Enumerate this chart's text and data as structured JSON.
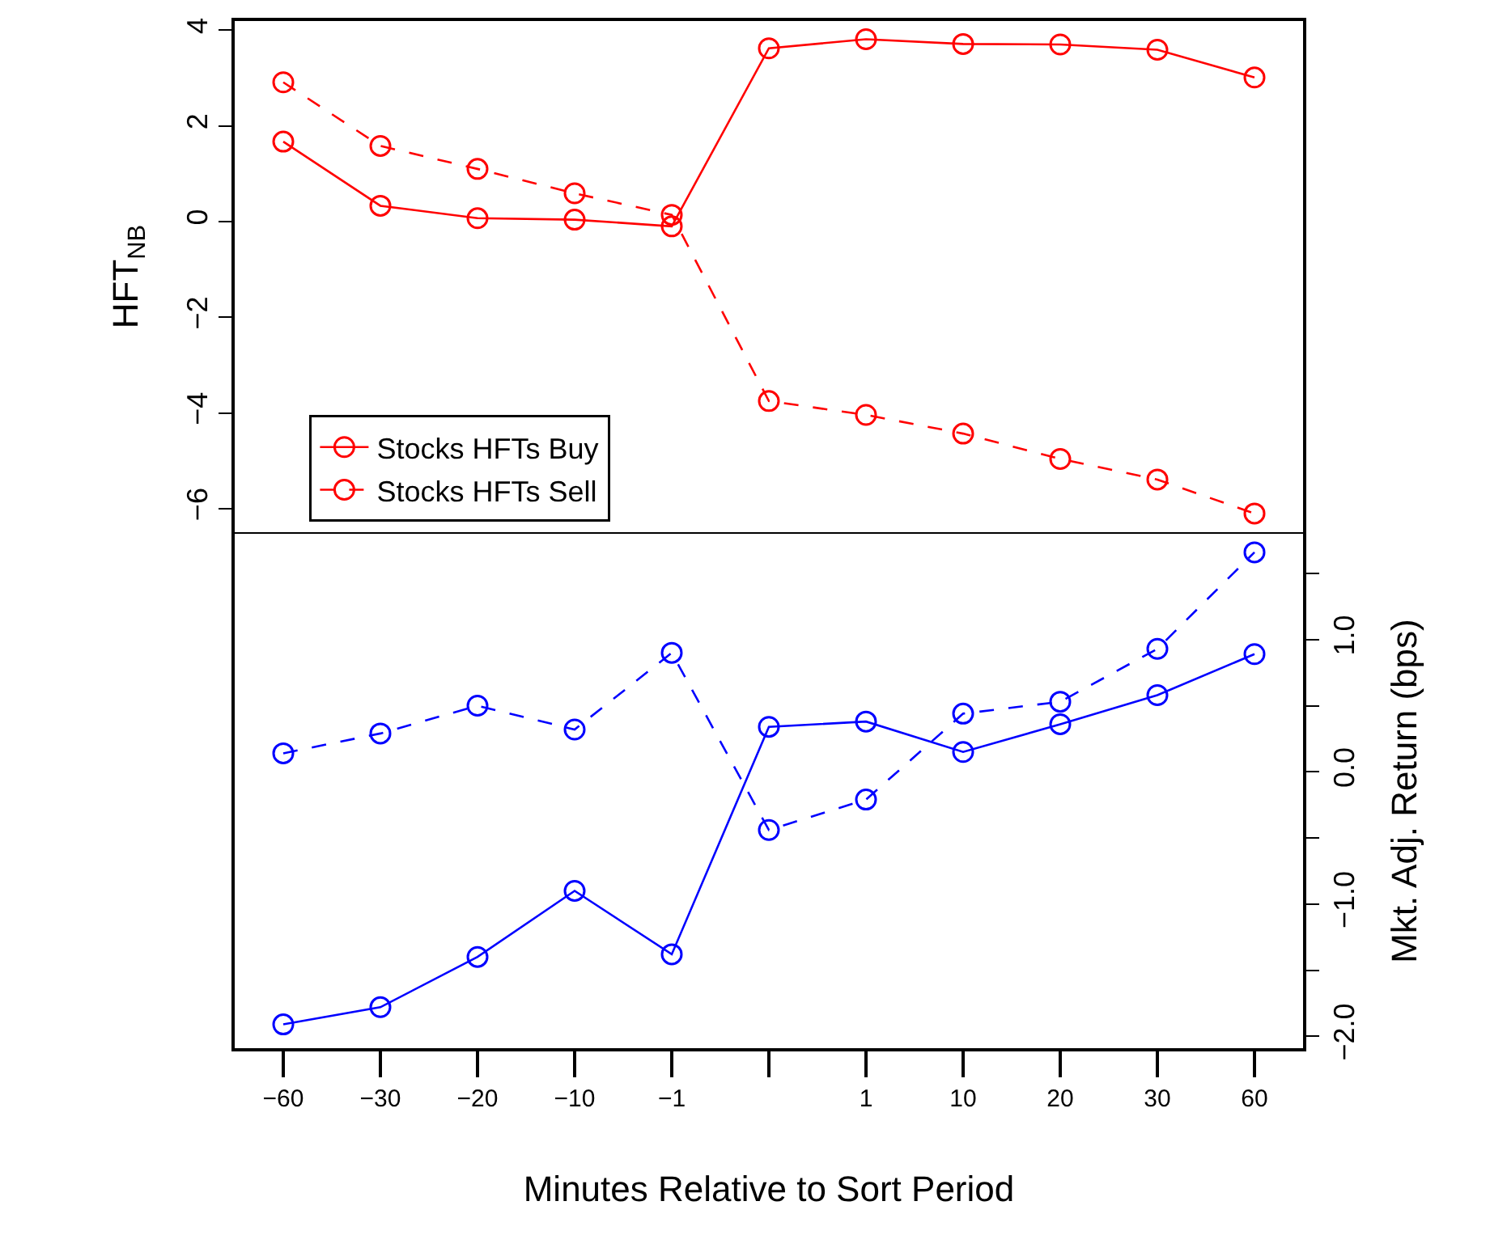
{
  "chart_data": [
    {
      "type": "line",
      "ylabel": "HFT$_{NB}$",
      "categories": [
        "−60",
        "−30",
        "−20",
        "−10",
        "−1",
        null,
        "1",
        "10",
        "20",
        "30",
        "60"
      ],
      "series": [
        {
          "name": "Stocks HFTs Buy",
          "color": "#ff0000",
          "line_style": "solid",
          "values": [
            1.67,
            0.33,
            0.07,
            0.04,
            -0.1,
            3.62,
            3.81,
            3.71,
            3.7,
            3.59,
            3.01
          ]
        },
        {
          "name": "Stocks HFTs Sell",
          "color": "#ff0000",
          "line_style": "dashed",
          "values": [
            2.91,
            1.58,
            1.1,
            0.59,
            0.14,
            -3.75,
            -4.04,
            -4.43,
            -4.96,
            -5.39,
            -6.1
          ]
        }
      ],
      "ylim": [
        -6.49,
        4.19
      ],
      "yticks": [
        4,
        2,
        {
          "value": 0,
          "label": "0"
        },
        {
          "value": -2,
          "label": "−2"
        },
        {
          "value": -4,
          "label": "−4"
        },
        {
          "value": -6,
          "label": "−6"
        }
      ],
      "marker": "circle",
      "grid": false,
      "legend": "bottom left",
      "tick_labels": "y"
    },
    {
      "type": "line",
      "xlabel": "Minutes Relative to Sort Period",
      "y2label": "Mkt. Adj. Return (bps)",
      "categories": [
        "−60",
        "−30",
        "−20",
        "−10",
        "−1",
        null,
        "1",
        "10",
        "20",
        "30",
        "60"
      ],
      "series": [
        {
          "color": "#0000ff",
          "line_style": "solid",
          "axis": "y2",
          "values": [
            -1.91,
            -1.78,
            -1.4,
            -0.9,
            -1.38,
            0.34,
            0.38,
            0.15,
            0.36,
            0.58,
            0.89
          ]
        },
        {
          "color": "#0000ff",
          "line_style": "dashed",
          "axis": "y2",
          "values": [
            0.14,
            0.29,
            0.5,
            0.32,
            0.9,
            -0.44,
            -0.21,
            0.44,
            0.53,
            0.93,
            1.66
          ]
        }
      ],
      "y2lim": [
        -2.09,
        1.8
      ],
      "y2ticks": [
        {
          "value": 1.5,
          "label": null
        },
        {
          "value": 1,
          "label": "1.0"
        },
        {
          "value": 0.5,
          "label": null
        },
        {
          "value": 0,
          "label": "0.0"
        },
        {
          "value": -0.5,
          "label": null
        },
        {
          "value": -1,
          "label": "−1.0"
        },
        {
          "value": -1.5,
          "label": null
        },
        {
          "value": -2,
          "label": "−2.0"
        }
      ],
      "marker": "circle",
      "grid": false
    }
  ]
}
